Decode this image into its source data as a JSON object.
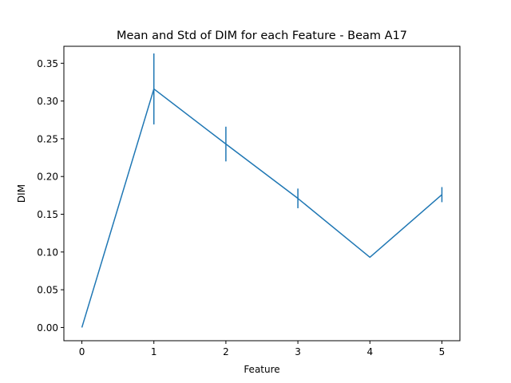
{
  "chart_data": {
    "type": "line",
    "title": "Mean and Std of DIM for each Feature - Beam A17",
    "xlabel": "Feature",
    "ylabel": "DIM",
    "x": [
      0,
      1,
      2,
      3,
      4,
      5
    ],
    "series": [
      {
        "values": [
          0.0,
          0.316,
          0.243,
          0.171,
          0.093,
          0.176
        ],
        "error": [
          0.0,
          0.047,
          0.023,
          0.013,
          0.0,
          0.01
        ]
      }
    ],
    "xlim": [
      -0.25,
      5.25
    ],
    "ylim": [
      -0.0175,
      0.3725
    ],
    "xticks": [
      "0",
      "1",
      "2",
      "3",
      "4",
      "5"
    ],
    "yticks": [
      "0.00",
      "0.05",
      "0.10",
      "0.15",
      "0.20",
      "0.25",
      "0.30",
      "0.35"
    ],
    "grid": false,
    "color": "#1f77b4"
  }
}
